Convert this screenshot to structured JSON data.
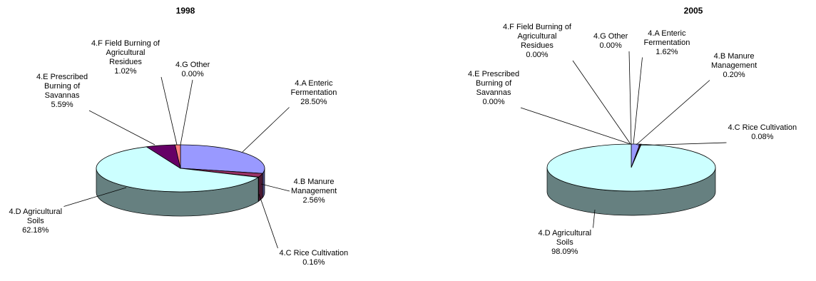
{
  "chart_data": [
    {
      "type": "pie",
      "title": "1998",
      "slices": [
        {
          "name": "4.A Enteric Fermentation",
          "label_lines": [
            "4.A Enteric",
            "Fermentation"
          ],
          "value": 28.5,
          "value_label": "28.50%",
          "color": "#9999ff"
        },
        {
          "name": "4.B Manure Management",
          "label_lines": [
            "4.B Manure",
            "Management"
          ],
          "value": 2.56,
          "value_label": "2.56%",
          "color": "#993366"
        },
        {
          "name": "4.C Rice Cultivation",
          "label_lines": [
            "4.C Rice Cultivation"
          ],
          "value": 0.16,
          "value_label": "0.16%",
          "color": "#ffffcc"
        },
        {
          "name": "4.D Agricultural Soils",
          "label_lines": [
            "4.D Agricultural",
            "Soils"
          ],
          "value": 62.18,
          "value_label": "62.18%",
          "color": "#ccffff"
        },
        {
          "name": "4.E Prescribed Burning of Savannas",
          "label_lines": [
            "4.E Prescribed",
            "Burning of",
            "Savannas"
          ],
          "value": 5.59,
          "value_label": "5.59%",
          "color": "#660066"
        },
        {
          "name": "4.F Field Burning of Agricultural Residues",
          "label_lines": [
            "4.F Field Burning of",
            "Agricultural",
            "Residues"
          ],
          "value": 1.02,
          "value_label": "1.02%",
          "color": "#ff8080"
        },
        {
          "name": "4.G Other",
          "label_lines": [
            "4.G Other"
          ],
          "value": 0.0,
          "value_label": "0.00%",
          "color": "#0066cc"
        }
      ]
    },
    {
      "type": "pie",
      "title": "2005",
      "slices": [
        {
          "name": "4.A Enteric Fermentation",
          "label_lines": [
            "4.A Enteric",
            "Fermentation"
          ],
          "value": 1.62,
          "value_label": "1.62%",
          "color": "#9999ff"
        },
        {
          "name": "4.B Manure Management",
          "label_lines": [
            "4.B Manure",
            "Management"
          ],
          "value": 0.2,
          "value_label": "0.20%",
          "color": "#993366"
        },
        {
          "name": "4.C Rice Cultivation",
          "label_lines": [
            "4.C Rice Cultivation"
          ],
          "value": 0.08,
          "value_label": "0.08%",
          "color": "#ffffcc"
        },
        {
          "name": "4.D Agricultural Soils",
          "label_lines": [
            "4.D Agricultural",
            "Soils"
          ],
          "value": 98.09,
          "value_label": "98.09%",
          "color": "#ccffff"
        },
        {
          "name": "4.E Prescribed Burning of Savannas",
          "label_lines": [
            "4.E Prescribed",
            "Burning of",
            "Savannas"
          ],
          "value": 0.0,
          "value_label": "0.00%",
          "color": "#660066"
        },
        {
          "name": "4.F Field Burning of Agricultural Residues",
          "label_lines": [
            "4.F Field Burning of",
            "Agricultural",
            "Residues"
          ],
          "value": 0.0,
          "value_label": "0.00%",
          "color": "#ff8080"
        },
        {
          "name": "4.G Other",
          "label_lines": [
            "4.G Other"
          ],
          "value": 0.0,
          "value_label": "0.00%",
          "color": "#0066cc"
        }
      ]
    }
  ]
}
